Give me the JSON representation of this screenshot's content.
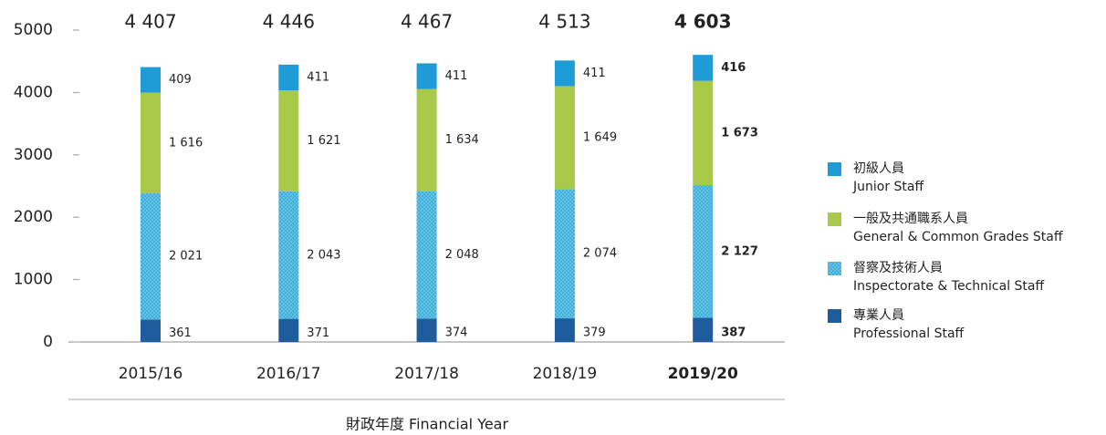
{
  "chart_data": {
    "type": "stacked-bar",
    "categories": [
      "2015/16",
      "2016/17",
      "2017/18",
      "2018/19",
      "2019/20"
    ],
    "highlight": 4,
    "xlabel": "財政年度 Financial Year",
    "ylim": [
      0,
      5000
    ],
    "yticks": [
      0,
      1000,
      2000,
      3000,
      4000,
      5000
    ],
    "totals": [
      4407,
      4446,
      4467,
      4513,
      4603
    ],
    "total_labels": [
      "4 407",
      "4 446",
      "4 467",
      "4 513",
      "4 603"
    ],
    "series": [
      {
        "name": [
          "專業人員",
          "Professional Staff"
        ],
        "color": "#1f5c9e",
        "values": [
          361,
          371,
          374,
          379,
          387
        ],
        "value_labels": [
          "361",
          "371",
          "374",
          "379",
          "387"
        ]
      },
      {
        "name": [
          "督察及技術人員",
          "Inspectorate & Technical Staff"
        ],
        "color": "#5ec3e6",
        "pattern": "dots",
        "values": [
          2021,
          2043,
          2048,
          2074,
          2127
        ],
        "value_labels": [
          "2 021",
          "2 043",
          "2 048",
          "2 074",
          "2 127"
        ]
      },
      {
        "name": [
          "一般及共通職系人員",
          "General & Common Grades Staff"
        ],
        "color": "#a9c94b",
        "values": [
          1616,
          1621,
          1634,
          1649,
          1673
        ],
        "value_labels": [
          "1 616",
          "1 621",
          "1 634",
          "1 649",
          "1 673"
        ]
      },
      {
        "name": [
          "初級人員",
          "Junior Staff"
        ],
        "color": "#1f9cd8",
        "values": [
          409,
          411,
          411,
          411,
          416
        ],
        "value_labels": [
          "409",
          "411",
          "411",
          "411",
          "416"
        ]
      }
    ]
  }
}
